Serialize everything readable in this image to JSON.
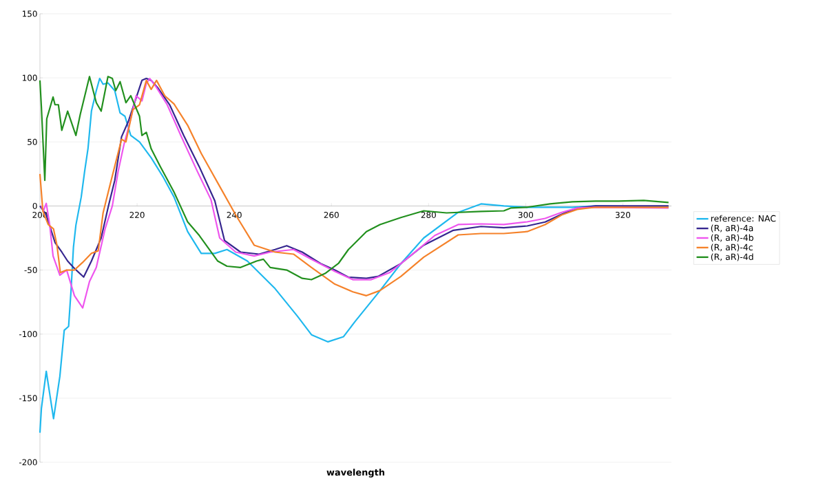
{
  "chart_data": {
    "type": "line",
    "xlabel": "wavelength",
    "xlim": [
      200,
      330
    ],
    "ylim": [
      -200,
      150
    ],
    "xticks": [
      200,
      220,
      240,
      260,
      280,
      300,
      320
    ],
    "yticks": [
      -200,
      -150,
      -100,
      -50,
      0,
      50,
      100,
      150
    ],
    "grid": "y",
    "legend": "right",
    "marker": "none",
    "line_style": "solid",
    "series": [
      {
        "name": "reference: NAC",
        "color": "#1fb8ee",
        "x": [
          200,
          200.3,
          201.3,
          202.8,
          204.1,
          205,
          205.9,
          206.4,
          206.9,
          207.4,
          208.5,
          209.2,
          209.9,
          210.6,
          211.6,
          212.3,
          213,
          214,
          215.4,
          216.5,
          217.5,
          218.7,
          220.5,
          222.9,
          225.3,
          227.6,
          230.4,
          233.2,
          236,
          238.5,
          242.7,
          248.4,
          253,
          255.9,
          259.3,
          262.5,
          264.9,
          269.6,
          274.3,
          279,
          286.1,
          290.8,
          295.5,
          300.3,
          305,
          309.6,
          314.4,
          329.4
        ],
        "values": [
          -177,
          -158,
          -129,
          -166,
          -133,
          -97,
          -94,
          -66,
          -32,
          -15,
          7,
          27,
          45,
          74,
          90,
          99.5,
          95,
          96,
          90,
          72.6,
          70,
          55,
          50,
          37.6,
          23,
          7,
          -20,
          -37,
          -37,
          -34,
          -43,
          -64.5,
          -86,
          -100.5,
          -106,
          -102,
          -90,
          -68,
          -45,
          -25,
          -5,
          1.6,
          0,
          -1,
          -1,
          -1,
          0,
          -1
        ]
      },
      {
        "name": "(R, aR)-4a",
        "color": "#35268f",
        "x": [
          200,
          201.3,
          203.1,
          204.5,
          205.7,
          206.9,
          209,
          210.6,
          212.6,
          214.1,
          215.4,
          216.8,
          218.2,
          219.6,
          221,
          221.9,
          222.9,
          224.3,
          226.7,
          229.6,
          232.8,
          236,
          238,
          241.3,
          245.1,
          248.4,
          250.8,
          254,
          257.8,
          260.7,
          263.5,
          267.2,
          269.6,
          274.3,
          279,
          285.1,
          290.8,
          295.5,
          300.3,
          304,
          307.4,
          310.6,
          314.4,
          329.4
        ],
        "values": [
          0,
          -7,
          -28.5,
          -36,
          -43,
          -48,
          -55.5,
          -43,
          -25,
          0,
          20,
          54,
          66,
          82,
          98,
          99.5,
          98,
          92,
          79,
          55,
          30.6,
          4,
          -27,
          -36,
          -37.6,
          -34,
          -31,
          -36,
          -45,
          -50,
          -55.6,
          -56.5,
          -55,
          -45,
          -30.6,
          -19,
          -16,
          -17,
          -15.6,
          -12.5,
          -6.5,
          -1.6,
          0,
          0
        ]
      },
      {
        "name": "(R, aR)-4b",
        "color": "#ee55ee",
        "x": [
          200.3,
          200.7,
          201.3,
          202,
          202.7,
          204.1,
          205.5,
          207.1,
          208.8,
          210.2,
          211.6,
          213.4,
          214.9,
          216.1,
          217.3,
          218.7,
          219.8,
          221,
          221.9,
          222.6,
          223.9,
          226.2,
          229,
          232.4,
          235.2,
          237,
          240.3,
          244.1,
          247.4,
          252.2,
          255.9,
          260.7,
          264.4,
          268.2,
          272,
          276.7,
          281.3,
          286.1,
          290.8,
          295.5,
          300.3,
          304,
          307.4,
          310.6,
          314.4,
          329.4
        ],
        "values": [
          0,
          -4,
          2,
          -14.5,
          -39,
          -54,
          -50,
          -70,
          -79.6,
          -59,
          -48,
          -18,
          0,
          27,
          48,
          68,
          86,
          82,
          95.7,
          99.5,
          93,
          79,
          55,
          27,
          5,
          -25,
          -36,
          -39,
          -36,
          -34,
          -41.6,
          -51,
          -57.5,
          -57.5,
          -52,
          -37.6,
          -23,
          -14.5,
          -14,
          -14.5,
          -12.4,
          -9.7,
          -5,
          -1.6,
          -1,
          -1.6
        ]
      },
      {
        "name": "(R, aR)-4c",
        "color": "#f5822a",
        "x": [
          200,
          200.6,
          201.7,
          202.8,
          203.5,
          204.2,
          205.5,
          207.1,
          208.8,
          210.6,
          212,
          213,
          214.4,
          216.8,
          217.7,
          219.1,
          220.5,
          221.9,
          222.9,
          224,
          225.7,
          227.6,
          230.4,
          233.2,
          236.6,
          240.3,
          244.1,
          248.4,
          252.2,
          255.9,
          260.7,
          264.4,
          267.2,
          270,
          274.3,
          279,
          286.1,
          290.8,
          295.5,
          300.3,
          304,
          307.4,
          310.6,
          314.4,
          329.4
        ],
        "values": [
          25,
          -4,
          -14.5,
          -18,
          -30.6,
          -52,
          -50,
          -50,
          -44,
          -37,
          -35,
          -5.4,
          16,
          52,
          50,
          75,
          79,
          98,
          91,
          98,
          86,
          79.6,
          63,
          41,
          18,
          -7,
          -30.6,
          -36,
          -37.6,
          -48,
          -61,
          -67,
          -70,
          -66,
          -55,
          -40,
          -22.6,
          -21.5,
          -21.5,
          -20,
          -14.5,
          -7,
          -2.7,
          -1,
          -1
        ]
      },
      {
        "name": "(R, aR)-4d",
        "color": "#22901e",
        "x": [
          200,
          200.3,
          201,
          201.4,
          202.7,
          203.1,
          203.8,
          204.5,
          205.7,
          207.4,
          208.3,
          210.2,
          211.6,
          212.6,
          214,
          214.9,
          215.6,
          216.5,
          217.7,
          218.7,
          220.5,
          221,
          221.9,
          222.9,
          224.8,
          227.6,
          230.4,
          232.8,
          236.6,
          238.5,
          241.3,
          244.6,
          246,
          247.4,
          250.8,
          254,
          255.9,
          258.7,
          261.5,
          263.5,
          267.2,
          270,
          274.3,
          279,
          283.7,
          290.8,
          295.5,
          296.9,
          300.3,
          305,
          309.6,
          314.4,
          319.1,
          324.3,
          329.4
        ],
        "values": [
          98,
          77,
          20,
          68,
          85,
          79,
          79,
          59,
          74,
          55,
          71.5,
          101,
          80.6,
          74,
          101,
          99.5,
          90,
          97,
          80.6,
          86,
          70,
          55,
          57.5,
          44.6,
          30.6,
          10.8,
          -12.4,
          -23,
          -43,
          -47,
          -48,
          -43,
          -41.6,
          -48,
          -50,
          -56.5,
          -57.5,
          -52.7,
          -44.6,
          -34,
          -20,
          -14.5,
          -9,
          -3.8,
          -5.4,
          -4.3,
          -3.8,
          -1.6,
          -1,
          1.6,
          3.2,
          3.8,
          3.8,
          4.3,
          2.7
        ]
      }
    ]
  }
}
